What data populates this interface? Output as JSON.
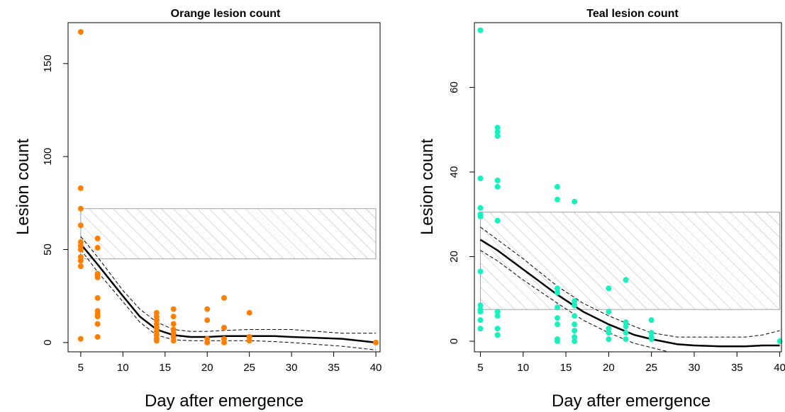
{
  "figure": {
    "panels": [
      {
        "title": "Orange lesion count",
        "xlabel": "Day after emergence",
        "ylabel": "Lesion count",
        "point_color": "#ff7f00",
        "xticks": [
          "5",
          "10",
          "15",
          "20",
          "25",
          "30",
          "35",
          "40"
        ],
        "yticks": [
          "0",
          "50",
          "100",
          "150"
        ]
      },
      {
        "title": "Teal lesion count",
        "xlabel": "Day after emergence",
        "ylabel": "Lesion count",
        "point_color": "#18f0c0",
        "xticks": [
          "5",
          "10",
          "15",
          "20",
          "25",
          "30",
          "35",
          "40"
        ],
        "yticks": [
          "0",
          "20",
          "40",
          "60"
        ]
      }
    ]
  },
  "chart_data": [
    {
      "type": "scatter",
      "title": "Orange lesion count",
      "xlabel": "Day after emergence",
      "ylabel": "Lesion count",
      "xlim": [
        3.5,
        40.5
      ],
      "ylim": [
        -5,
        172
      ],
      "points_color": "#ff7f00",
      "points": [
        [
          5,
          167
        ],
        [
          5,
          83
        ],
        [
          5,
          72
        ],
        [
          5,
          63
        ],
        [
          5,
          54
        ],
        [
          5,
          52
        ],
        [
          5,
          50
        ],
        [
          5,
          46
        ],
        [
          5,
          44
        ],
        [
          5,
          41
        ],
        [
          5,
          2
        ],
        [
          7,
          56
        ],
        [
          7,
          51
        ],
        [
          7,
          37
        ],
        [
          7,
          36
        ],
        [
          7,
          35
        ],
        [
          7,
          24
        ],
        [
          7,
          17
        ],
        [
          7,
          15
        ],
        [
          7,
          14
        ],
        [
          7,
          10
        ],
        [
          7,
          3
        ],
        [
          14,
          16
        ],
        [
          14,
          14
        ],
        [
          14,
          12
        ],
        [
          14,
          10
        ],
        [
          14,
          8
        ],
        [
          14,
          6
        ],
        [
          14,
          4
        ],
        [
          14,
          2
        ],
        [
          14,
          1
        ],
        [
          16,
          18
        ],
        [
          16,
          14
        ],
        [
          16,
          10
        ],
        [
          16,
          7
        ],
        [
          16,
          5
        ],
        [
          16,
          3
        ],
        [
          16,
          1
        ],
        [
          20,
          18
        ],
        [
          20,
          12
        ],
        [
          20,
          2
        ],
        [
          20,
          0
        ],
        [
          22,
          24
        ],
        [
          22,
          8
        ],
        [
          22,
          2
        ],
        [
          22,
          0
        ],
        [
          25,
          16
        ],
        [
          25,
          3
        ],
        [
          25,
          1
        ],
        [
          40,
          0
        ]
      ],
      "fit": {
        "x": [
          5,
          7,
          10,
          12,
          14,
          16,
          18,
          20,
          22,
          25,
          28,
          30,
          33,
          36,
          38,
          40
        ],
        "y": [
          53,
          42,
          25,
          14,
          7,
          4,
          3,
          3,
          3.5,
          3.5,
          3.5,
          3,
          2.5,
          2,
          1,
          0
        ]
      },
      "fit_upper": {
        "x": [
          5,
          7,
          10,
          12,
          14,
          16,
          18,
          20,
          22,
          25,
          28,
          30,
          33,
          36,
          38,
          40
        ],
        "y": [
          57,
          46,
          28,
          18,
          11,
          7,
          6,
          6,
          6.5,
          7,
          7,
          7,
          6,
          5,
          5,
          5
        ]
      },
      "fit_lower": {
        "x": [
          5,
          7,
          10,
          12,
          14,
          16,
          18,
          20,
          22,
          25,
          28,
          30,
          33,
          36,
          38,
          40
        ],
        "y": [
          50,
          38,
          22,
          11,
          4,
          1.5,
          1,
          1,
          1,
          1,
          0.5,
          0,
          -1,
          -2,
          -3,
          -4
        ]
      },
      "band": {
        "x": [
          5,
          40
        ],
        "y": [
          45,
          72
        ]
      }
    },
    {
      "type": "scatter",
      "title": "Teal lesion count",
      "xlabel": "Day after emergence",
      "ylabel": "Lesion count",
      "xlim": [
        4.3,
        40.2
      ],
      "ylim": [
        -2.5,
        75.3
      ],
      "points_color": "#18f0c0",
      "points": [
        [
          5,
          73.5
        ],
        [
          5,
          38.5
        ],
        [
          5,
          31.5
        ],
        [
          5,
          30
        ],
        [
          5,
          29.5
        ],
        [
          5,
          16.5
        ],
        [
          5,
          8.5
        ],
        [
          5,
          7.5
        ],
        [
          5,
          7
        ],
        [
          5,
          5
        ],
        [
          5,
          3
        ],
        [
          7,
          50.5
        ],
        [
          7,
          49.5
        ],
        [
          7,
          48.5
        ],
        [
          7,
          38
        ],
        [
          7,
          36.5
        ],
        [
          7,
          28.5
        ],
        [
          7,
          7
        ],
        [
          7,
          6
        ],
        [
          7,
          3
        ],
        [
          7,
          1.5
        ],
        [
          14,
          36.5
        ],
        [
          14,
          33.5
        ],
        [
          14,
          12.5
        ],
        [
          14,
          11.5
        ],
        [
          14,
          8
        ],
        [
          14,
          5.5
        ],
        [
          14,
          4
        ],
        [
          14,
          0.5
        ],
        [
          14,
          0
        ],
        [
          16,
          33
        ],
        [
          16,
          9.5
        ],
        [
          16,
          8.5
        ],
        [
          16,
          6
        ],
        [
          16,
          4
        ],
        [
          16,
          2.5
        ],
        [
          16,
          1
        ],
        [
          16,
          0
        ],
        [
          20,
          12.5
        ],
        [
          20,
          7
        ],
        [
          20,
          3
        ],
        [
          20,
          2
        ],
        [
          20,
          0.5
        ],
        [
          22,
          14.5
        ],
        [
          22,
          4.5
        ],
        [
          22,
          3.5
        ],
        [
          22,
          2
        ],
        [
          22,
          0.5
        ],
        [
          25,
          5
        ],
        [
          25,
          2
        ],
        [
          25,
          1
        ],
        [
          25,
          0.5
        ],
        [
          40,
          0
        ]
      ],
      "fit": {
        "x": [
          5,
          7,
          10,
          14,
          17,
          20,
          23,
          25,
          28,
          30,
          33,
          36,
          38,
          40
        ],
        "y": [
          24,
          21.5,
          17,
          11,
          7,
          4,
          1.5,
          0.5,
          -0.7,
          -1,
          -1.2,
          -1.2,
          -1,
          -1
        ]
      },
      "fit_upper": {
        "x": [
          5,
          7,
          10,
          14,
          17,
          20,
          23,
          25,
          28,
          30,
          33,
          36,
          38,
          40
        ],
        "y": [
          27,
          24,
          19.5,
          13,
          9,
          6,
          3.5,
          2,
          1,
          1,
          1,
          1,
          1.5,
          2.5
        ]
      },
      "fit_lower": {
        "x": [
          5,
          7,
          10,
          14,
          17,
          20,
          23,
          25,
          28,
          30,
          33,
          36,
          38,
          40
        ],
        "y": [
          21.5,
          19,
          14.5,
          9,
          5,
          2,
          -0.5,
          -1.5,
          -3,
          -4,
          -5,
          -5.5,
          -6,
          -6
        ]
      },
      "band": {
        "x": [
          5,
          40
        ],
        "y": [
          7.5,
          30.5
        ]
      }
    }
  ]
}
